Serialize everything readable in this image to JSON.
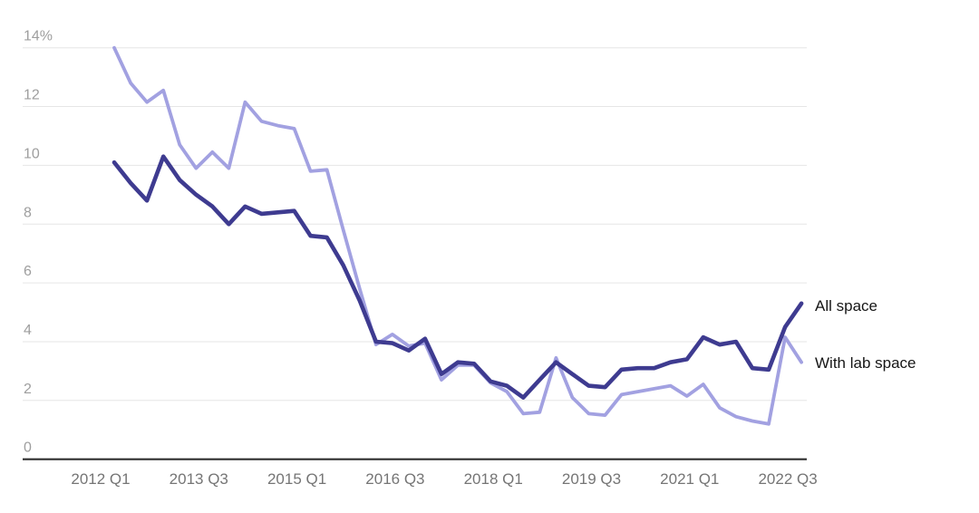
{
  "colors": {
    "background": "#ffffff",
    "grid": "#e6e6e6",
    "baseline": "#2e2e2e",
    "axis_text_y": "#9e9e9e",
    "axis_text_x": "#757575",
    "series_label_text": "#161616",
    "all_space_line": "#3e3b90",
    "with_lab_space_line": "#a2a1e1"
  },
  "chart_data": {
    "type": "line",
    "title": "",
    "xlabel": "",
    "ylabel": "",
    "ylim": [
      0,
      14
    ],
    "grid": "horizontal",
    "legend_position": "right-of-line-ends",
    "x": [
      "2012 Q1",
      "2012 Q2",
      "2012 Q3",
      "2012 Q4",
      "2013 Q1",
      "2013 Q2",
      "2013 Q3",
      "2013 Q4",
      "2014 Q1",
      "2014 Q2",
      "2014 Q3",
      "2014 Q4",
      "2015 Q1",
      "2015 Q2",
      "2015 Q3",
      "2015 Q4",
      "2016 Q1",
      "2016 Q2",
      "2016 Q3",
      "2016 Q4",
      "2017 Q1",
      "2017 Q2",
      "2017 Q3",
      "2017 Q4",
      "2018 Q1",
      "2018 Q2",
      "2018 Q3",
      "2018 Q4",
      "2019 Q1",
      "2019 Q2",
      "2019 Q3",
      "2019 Q4",
      "2020 Q1",
      "2020 Q2",
      "2020 Q3",
      "2020 Q4",
      "2021 Q1",
      "2021 Q2",
      "2021 Q3",
      "2021 Q4",
      "2022 Q1",
      "2022 Q2",
      "2022 Q3"
    ],
    "x_tick_labels": [
      "2012 Q1",
      "2013 Q3",
      "2015 Q1",
      "2016 Q3",
      "2018 Q1",
      "2019 Q3",
      "2021 Q1",
      "2022 Q3"
    ],
    "x_tick_indices": [
      0,
      6,
      12,
      18,
      24,
      30,
      36,
      42
    ],
    "y_ticks": [
      {
        "value": 14,
        "label": "14%"
      },
      {
        "value": 12,
        "label": "12"
      },
      {
        "value": 10,
        "label": "10"
      },
      {
        "value": 8,
        "label": "8"
      },
      {
        "value": 6,
        "label": "6"
      },
      {
        "value": 4,
        "label": "4"
      },
      {
        "value": 2,
        "label": "2"
      },
      {
        "value": 0,
        "label": "0"
      }
    ],
    "series": [
      {
        "name": "All space",
        "color": "#3e3b90",
        "stroke_width": 4.6,
        "values": [
          10.1,
          9.4,
          8.8,
          10.3,
          9.5,
          9.0,
          8.6,
          8.0,
          8.6,
          8.35,
          8.4,
          8.45,
          7.6,
          7.55,
          6.6,
          5.4,
          4.0,
          3.95,
          3.7,
          4.1,
          2.9,
          3.3,
          3.25,
          2.65,
          2.5,
          2.1,
          2.7,
          3.3,
          2.9,
          2.5,
          2.45,
          3.05,
          3.1,
          3.1,
          3.3,
          3.4,
          4.15,
          3.9,
          4.0,
          3.1,
          3.05,
          4.5,
          5.3
        ]
      },
      {
        "name": "With lab space",
        "color": "#a2a1e1",
        "stroke_width": 3.8,
        "values": [
          14.0,
          12.8,
          12.15,
          12.55,
          10.7,
          9.9,
          10.45,
          9.9,
          12.15,
          11.5,
          11.35,
          11.25,
          9.8,
          9.85,
          7.8,
          5.8,
          3.9,
          4.25,
          3.85,
          3.95,
          2.7,
          3.2,
          3.2,
          2.6,
          2.3,
          1.55,
          1.6,
          3.45,
          2.1,
          1.55,
          1.5,
          2.2,
          2.3,
          2.4,
          2.5,
          2.15,
          2.55,
          1.75,
          1.45,
          1.3,
          1.2,
          4.15,
          3.3
        ]
      }
    ]
  }
}
